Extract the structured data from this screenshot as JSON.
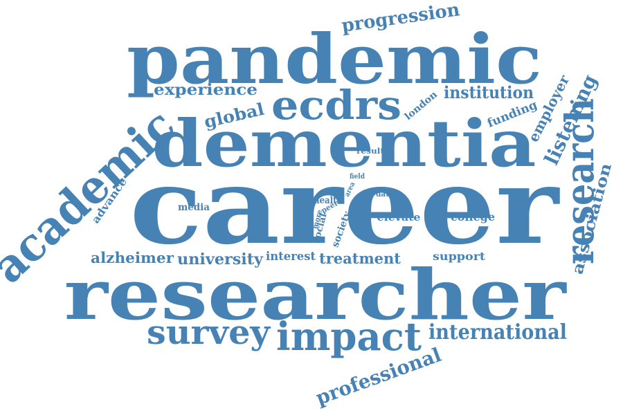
{
  "word_cloud": {
    "color": "#4682b4",
    "words": {
      "career": "career",
      "researcher": "researcher",
      "dementia": "dementia",
      "pandemic": "pandemic",
      "academic": "academic",
      "research": "research",
      "ecdrs": "ecdrs",
      "impact": "impact",
      "survey": "survey",
      "international": "international",
      "professional": "professional",
      "progression": "progression",
      "listening": "listening",
      "association": "association",
      "employer": "employer",
      "experience": "experience",
      "institution": "institution",
      "global": "global",
      "university": "university",
      "alzheimer": "alzheimer",
      "treatment": "treatment",
      "interest": "interest",
      "funding": "funding",
      "london": "london",
      "advance": "advance",
      "media": "media",
      "support": "support",
      "college": "college",
      "elevate": "elevate",
      "health": "health",
      "society": "society",
      "social": "social",
      "more": "more",
      "peer": "peer",
      "area": "area",
      "field": "field",
      "data": "data",
      "result": "result"
    }
  }
}
